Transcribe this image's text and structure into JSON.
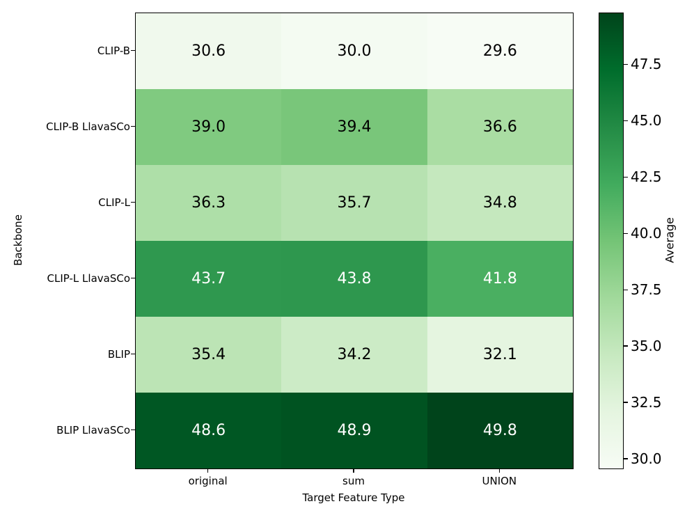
{
  "chart_data": {
    "type": "heatmap",
    "colormap": "Greens",
    "xlabel": "Target Feature Type",
    "ylabel": "Backbone",
    "columns": [
      "original",
      "sum",
      "UNION"
    ],
    "rows": [
      "CLIP-B",
      "CLIP-B LlavaSCo",
      "CLIP-L",
      "CLIP-L LlavaSCo",
      "BLIP",
      "BLIP LlavaSCo"
    ],
    "values": [
      [
        30.6,
        30.0,
        29.6
      ],
      [
        39.0,
        39.4,
        36.6
      ],
      [
        36.3,
        35.7,
        34.8
      ],
      [
        43.7,
        43.8,
        41.8
      ],
      [
        35.4,
        34.2,
        32.1
      ],
      [
        48.6,
        48.9,
        49.8
      ]
    ],
    "value_decimals": 1,
    "vmin": 29.6,
    "vmax": 49.8,
    "annotation_text_colors": {
      "light_cells": "#000000",
      "dark_cells": "#ffffff",
      "dark_threshold": 0.55
    },
    "colorbar": {
      "label": "Average",
      "tick_values": [
        30.0,
        32.5,
        35.0,
        37.5,
        40.0,
        42.5,
        45.0,
        47.5
      ],
      "tick_decimals": 1,
      "gradient_stops": [
        "#f7fcf5",
        "#e5f5e0",
        "#c7e9c0",
        "#a1d99b",
        "#74c476",
        "#41ab5d",
        "#238b45",
        "#006d2c",
        "#00441b"
      ]
    },
    "axis_color": "#000000",
    "background_color": "#ffffff",
    "legend_position": "right-colorbar",
    "grid": false
  }
}
